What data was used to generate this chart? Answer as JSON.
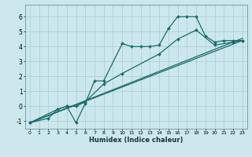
{
  "title": "",
  "xlabel": "Humidex (Indice chaleur)",
  "bg_color": "#cce8ec",
  "grid_color": "#aaccd4",
  "line_color": "#1a6b6b",
  "xlim": [
    -0.5,
    23.5
  ],
  "ylim": [
    -1.5,
    6.8
  ],
  "yticks": [
    -1,
    0,
    1,
    2,
    3,
    4,
    5,
    6
  ],
  "xticks": [
    0,
    1,
    2,
    3,
    4,
    5,
    6,
    7,
    8,
    9,
    10,
    11,
    12,
    13,
    14,
    15,
    16,
    17,
    18,
    19,
    20,
    21,
    22,
    23
  ],
  "series1": {
    "x": [
      0,
      2,
      3,
      4,
      5,
      6,
      7,
      8,
      10,
      11,
      12,
      13,
      14,
      15,
      16,
      17,
      18,
      19,
      20,
      21,
      22,
      23
    ],
    "y": [
      -1.1,
      -0.8,
      -0.2,
      0.0,
      -1.1,
      0.2,
      1.7,
      1.7,
      4.2,
      4.0,
      4.0,
      4.0,
      4.1,
      5.2,
      6.0,
      6.0,
      6.0,
      4.7,
      4.3,
      4.4,
      4.4,
      4.4
    ]
  },
  "series2": {
    "x": [
      0,
      3,
      4,
      5,
      6,
      8,
      10,
      14,
      16,
      18,
      20,
      22,
      23
    ],
    "y": [
      -1.1,
      -0.2,
      0.0,
      0.0,
      0.3,
      1.5,
      2.2,
      3.5,
      4.5,
      5.1,
      4.1,
      4.3,
      4.4
    ]
  },
  "series3": {
    "x": [
      0,
      23
    ],
    "y": [
      -1.1,
      4.4
    ]
  },
  "series4": {
    "x": [
      0,
      23
    ],
    "y": [
      -1.1,
      4.55
    ]
  }
}
